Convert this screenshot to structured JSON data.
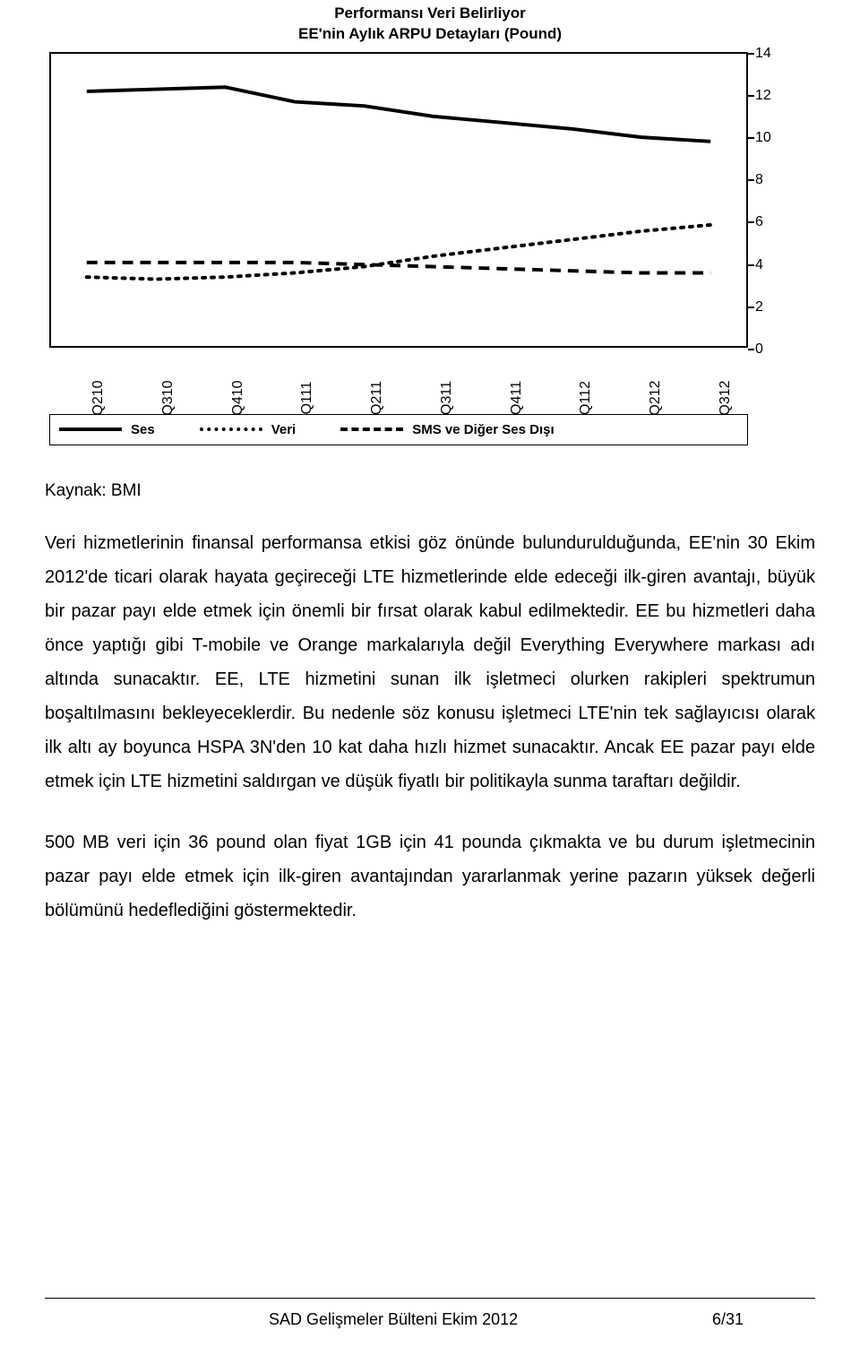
{
  "chart": {
    "title_line1": "Performansı Veri Belirliyor",
    "title_line2": "EE'nin Aylık ARPU Detayları (Pound)",
    "title_fontsize": 17,
    "title_fontweight": "bold",
    "background_color": "#ffffff",
    "border_color": "#000000",
    "line_color": "#000000",
    "ylim": [
      0,
      14
    ],
    "ytick_step": 2,
    "yticks": [
      0,
      2,
      4,
      6,
      8,
      10,
      12,
      14
    ],
    "xticks": [
      "Q210",
      "Q310",
      "Q410",
      "Q111",
      "Q211",
      "Q311",
      "Q411",
      "Q112",
      "Q212",
      "Q312"
    ],
    "series": {
      "ses": {
        "label": "Ses",
        "style": "solid",
        "values": [
          12.2,
          12.3,
          12.4,
          11.7,
          11.5,
          11.0,
          10.7,
          10.4,
          10.0,
          9.8
        ],
        "line_width": 4
      },
      "veri": {
        "label": "Veri",
        "style": "dotted",
        "values": [
          3.3,
          3.2,
          3.3,
          3.5,
          3.8,
          4.3,
          4.7,
          5.1,
          5.5,
          5.8
        ],
        "line_width": 4
      },
      "sms": {
        "label": "SMS ve Diğer Ses Dışı",
        "style": "dashed",
        "values": [
          4.0,
          4.0,
          4.0,
          4.0,
          3.9,
          3.8,
          3.7,
          3.6,
          3.5,
          3.5
        ],
        "line_width": 4
      }
    },
    "legend": {
      "items": [
        {
          "label": "Ses",
          "style": "solid"
        },
        {
          "label": "Veri",
          "style": "dotted"
        },
        {
          "label": "SMS ve Diğer Ses Dışı",
          "style": "dashed"
        }
      ]
    }
  },
  "source_label": "Kaynak: BMI",
  "paragraph1": "Veri hizmetlerinin finansal performansa etkisi göz önünde bulundurulduğunda, EE'nin 30 Ekim 2012'de ticari olarak hayata geçireceği LTE hizmetlerinde elde edeceği ilk-giren avantajı, büyük bir pazar payı elde etmek için önemli bir fırsat olarak kabul edilmektedir. EE bu hizmetleri daha önce yaptığı gibi T-mobile ve Orange markalarıyla değil Everything Everywhere markası adı altında sunacaktır. EE, LTE hizmetini sunan ilk işletmeci olurken rakipleri spektrumun boşaltılmasını bekleyeceklerdir. Bu nedenle söz konusu işletmeci LTE'nin tek sağlayıcısı olarak ilk altı ay boyunca HSPA 3N'den 10 kat daha hızlı hizmet sunacaktır. Ancak EE pazar payı elde etmek için LTE hizmetini saldırgan ve düşük fiyatlı bir politikayla sunma taraftarı değildir.",
  "paragraph2": "500 MB veri için 36 pound olan fiyat 1GB için 41 pounda çıkmakta ve bu durum işletmecinin pazar payı elde etmek için ilk-giren avantajından yararlanmak yerine pazarın yüksek değerli bölümünü hedeflediğini göstermektedir.",
  "footer_center": "SAD Gelişmeler Bülteni Ekim 2012",
  "footer_right": "6/31",
  "body_fontsize": 20,
  "body_line_height": 1.9,
  "text_color": "#000000"
}
